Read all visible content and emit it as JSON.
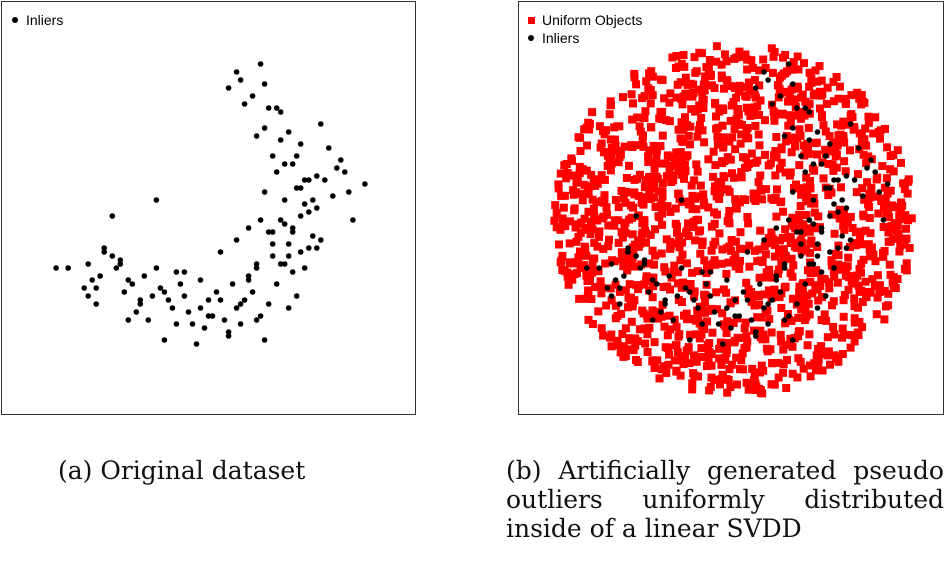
{
  "colors": {
    "inliers": "#000000",
    "uniform_objects": "#ff0000",
    "frame": "#333333"
  },
  "panel_a": {
    "legend": {
      "inliers_label": "Inliers"
    },
    "caption": "(a) Original dataset"
  },
  "panel_b": {
    "legend": {
      "uniform_label": "Uniform Objects",
      "inliers_label": "Inliers"
    },
    "caption": "(b) Artificially generated pseudo outliers uniformly distributed inside of a linear SVDD"
  },
  "chart_data": [
    {
      "type": "scatter",
      "title": "",
      "xlabel": "",
      "ylabel": "",
      "xlim": [
        0,
        100
      ],
      "ylim": [
        0,
        100
      ],
      "grid": false,
      "legend_position": "top-left",
      "series": [
        {
          "name": "Inliers",
          "marker": "circle",
          "color": "#000000",
          "x": [
            12,
            21,
            20,
            23,
            27,
            20,
            19,
            26,
            29,
            22,
            31,
            28,
            24,
            34,
            36,
            37,
            33,
            30,
            32,
            38,
            40,
            43,
            42,
            39,
            45,
            44,
            48,
            47,
            49,
            50,
            53,
            52,
            55,
            54,
            57,
            56,
            58,
            59,
            62,
            61,
            63,
            64,
            65,
            62,
            60,
            66,
            67,
            65,
            69,
            70,
            68,
            71,
            73,
            72,
            70,
            69,
            74,
            76,
            73,
            75,
            77,
            71,
            72,
            66,
            68,
            64,
            67,
            78,
            80,
            82,
            79,
            76,
            73,
            71,
            70,
            74,
            77,
            81,
            85,
            86,
            84,
            83,
            89,
            65,
            61,
            58,
            55,
            63,
            57,
            59,
            37,
            26,
            15,
            64,
            68,
            70,
            73,
            75,
            69,
            66,
            62,
            60,
            58,
            55,
            50,
            46,
            44,
            41,
            35,
            28,
            24,
            22,
            30,
            33,
            39,
            42,
            48,
            51,
            53,
            57,
            60,
            63,
            67,
            69,
            72,
            74,
            77,
            78,
            75,
            71,
            68,
            66,
            64,
            62
          ],
          "y": [
            35,
            32,
            36,
            33,
            35,
            28,
            30,
            38,
            29,
            26,
            31,
            37,
            40,
            33,
            28,
            35,
            26,
            22,
            24,
            30,
            27,
            31,
            21,
            17,
            24,
            28,
            25,
            16,
            20,
            23,
            27,
            29,
            18,
            22,
            25,
            31,
            21,
            27,
            35,
            29,
            23,
            17,
            26,
            22,
            32,
            38,
            31,
            44,
            36,
            41,
            47,
            34,
            39,
            28,
            25,
            46,
            51,
            43,
            55,
            49,
            58,
            61,
            55,
            63,
            67,
            70,
            75,
            71,
            65,
            60,
            57,
            52,
            48,
            45,
            38,
            35,
            40,
            53,
            54,
            47,
            59,
            62,
            56,
            75,
            78,
            82,
            80,
            86,
            84,
            76,
            52,
            48,
            35,
            81,
            74,
            69,
            66,
            57,
            52,
            44,
            36,
            33,
            26,
            19,
            27,
            21,
            34,
            25,
            22,
            36,
            39,
            30,
            32,
            27,
            29,
            34,
            32,
            23,
            39,
            42,
            45,
            47,
            59,
            61,
            63,
            57,
            50,
            42,
            40,
            44,
            36,
            41,
            54,
            68
          ]
        }
      ]
    },
    {
      "type": "scatter",
      "title": "",
      "xlabel": "",
      "ylabel": "",
      "xlim": [
        0,
        100
      ],
      "ylim": [
        0,
        100
      ],
      "grid": false,
      "legend_position": "top-left",
      "series": [
        {
          "name": "Uniform Objects",
          "marker": "square",
          "color": "#ff0000",
          "distribution": "uniform inside circle",
          "center": [
            51,
            47
          ],
          "radius": 44,
          "count": 1500
        },
        {
          "name": "Inliers",
          "marker": "circle",
          "color": "#000000",
          "x": [
            15,
            22,
            21,
            24,
            28,
            21,
            20,
            27,
            30,
            23,
            32,
            29,
            25,
            35,
            37,
            38,
            34,
            31,
            33,
            39,
            41,
            44,
            43,
            40,
            46,
            45,
            49,
            48,
            50,
            51,
            54,
            53,
            56,
            55,
            58,
            57,
            59,
            60,
            63,
            62,
            64,
            65,
            66,
            63,
            61,
            67,
            68,
            66,
            70,
            71,
            69,
            72,
            74,
            73,
            71,
            70,
            75,
            77,
            74,
            76,
            78,
            72,
            73,
            67,
            69,
            65,
            68,
            79,
            81,
            83,
            80,
            77,
            74,
            72,
            71,
            75,
            78,
            82,
            86,
            87,
            85,
            84,
            88,
            66,
            62,
            59,
            56,
            64,
            58,
            60,
            38,
            27,
            18,
            65,
            69,
            71,
            74,
            76,
            70,
            67,
            63,
            61,
            59,
            56,
            51,
            47,
            45,
            42,
            36,
            29,
            25,
            23,
            31,
            34,
            40,
            43,
            49,
            52,
            54,
            58,
            61,
            64,
            68,
            70,
            73,
            75,
            78,
            79,
            76,
            72,
            69,
            67,
            65,
            63
          ],
          "y": [
            35,
            32,
            36,
            33,
            35,
            28,
            30,
            38,
            29,
            26,
            31,
            37,
            40,
            33,
            28,
            35,
            26,
            22,
            24,
            30,
            27,
            31,
            21,
            17,
            24,
            28,
            25,
            16,
            20,
            23,
            27,
            29,
            18,
            22,
            25,
            31,
            21,
            27,
            35,
            29,
            23,
            17,
            26,
            22,
            32,
            38,
            31,
            44,
            36,
            41,
            47,
            34,
            39,
            28,
            25,
            46,
            51,
            43,
            55,
            49,
            58,
            61,
            55,
            63,
            67,
            70,
            75,
            71,
            65,
            60,
            57,
            52,
            48,
            45,
            38,
            35,
            40,
            53,
            54,
            47,
            59,
            62,
            56,
            75,
            78,
            82,
            80,
            86,
            84,
            76,
            52,
            48,
            35,
            81,
            74,
            69,
            66,
            57,
            52,
            44,
            36,
            33,
            26,
            19,
            27,
            21,
            34,
            25,
            22,
            36,
            39,
            30,
            32,
            27,
            29,
            34,
            32,
            23,
            39,
            42,
            45,
            47,
            59,
            61,
            63,
            57,
            50,
            42,
            40,
            44,
            36,
            41,
            54,
            68
          ]
        }
      ]
    }
  ]
}
